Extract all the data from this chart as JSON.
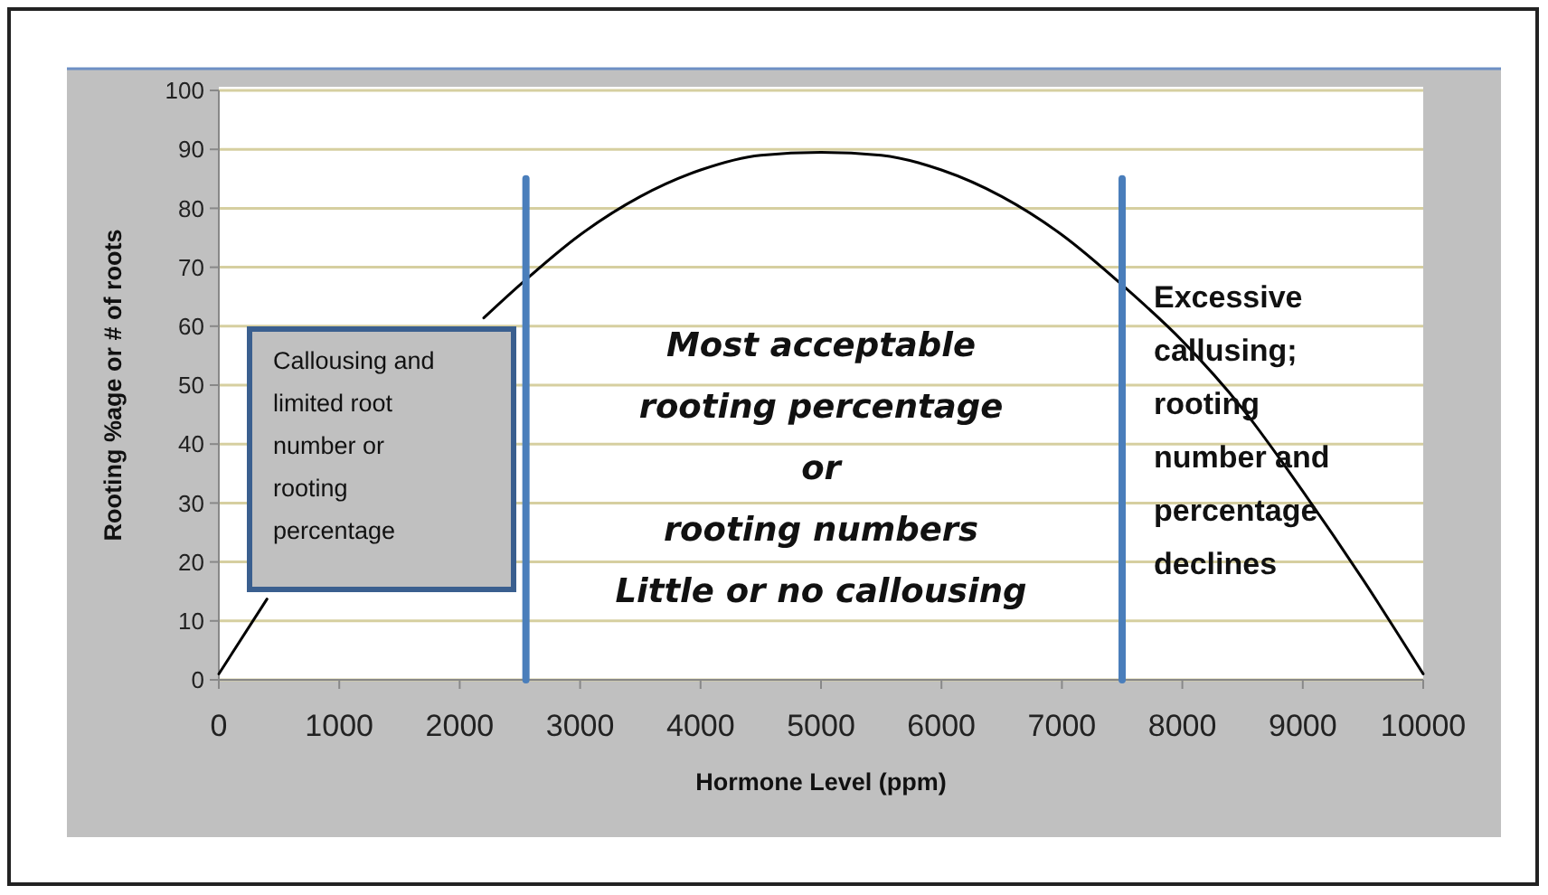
{
  "chart_data": {
    "type": "line",
    "xlabel": "Hormone Level (ppm)",
    "ylabel": "Rooting %age or # of roots",
    "xlim": [
      0,
      10000
    ],
    "xticks": [
      0,
      1000,
      2000,
      3000,
      4000,
      5000,
      6000,
      7000,
      8000,
      9000,
      10000
    ],
    "ylim": [
      0,
      100
    ],
    "yticks": [
      0,
      10,
      20,
      30,
      40,
      50,
      60,
      70,
      80,
      90,
      100
    ],
    "grid": "y",
    "marker": "none",
    "line_style": "solid",
    "series": [
      {
        "color": "#000000",
        "x": [
          0,
          400,
          500,
          1000,
          1500,
          2000,
          2200,
          2500,
          3000,
          3500,
          4000,
          4500,
          5000,
          5500,
          6000,
          6500,
          7000,
          7500,
          8000,
          8500,
          9000,
          9500,
          10000
        ],
        "values": [
          1,
          13.7,
          null,
          null,
          null,
          null,
          61.4,
          67,
          75.5,
          82,
          86.5,
          89,
          89.5,
          89,
          86.5,
          82,
          75.5,
          67,
          57.5,
          46,
          32,
          17,
          1
        ]
      },
      {
        "color": "#4a7ebb",
        "x": [
          2550,
          2550
        ],
        "values": [
          0,
          85
        ]
      },
      {
        "color": "#4a7ebb",
        "x": [
          7500,
          7500
        ],
        "values": [
          0,
          85
        ]
      }
    ],
    "annotations": [
      "Callousing and\nlimited root\nnumber or\nrooting\npercentage",
      "Most acceptable\nrooting percentage\nor\nrooting numbers\nLittle or no callousing",
      "Excessive\ncallusing;\nrooting\nnumber and\npercentage\ndeclines"
    ]
  }
}
